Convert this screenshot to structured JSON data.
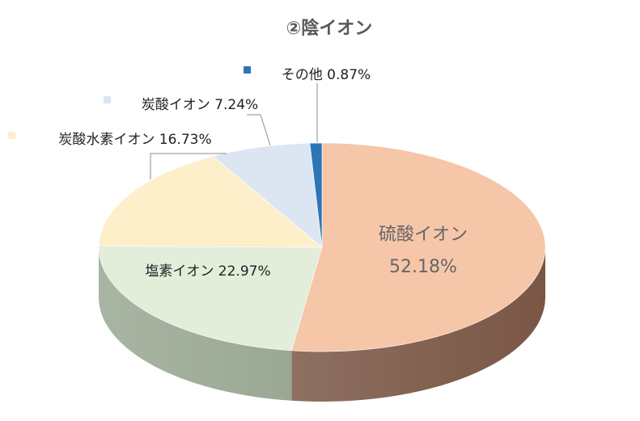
{
  "chart_data": {
    "type": "pie",
    "title": "②陰イオン",
    "slices": [
      {
        "name": "硫酸イオン",
        "value": 52.18,
        "label": "52.18%",
        "color": "#F6C6A8",
        "side": "#7A5645"
      },
      {
        "name": "塩素イオン",
        "value": 22.97,
        "label": "22.97%",
        "color": "#E2EDDA",
        "side": "#9AA893"
      },
      {
        "name": "炭酸水素イオン",
        "value": 16.73,
        "label": "16.73%",
        "color": "#FCEFCA",
        "side": "#B8AE8E"
      },
      {
        "name": "炭酸イオン",
        "value": 7.24,
        "label": "7.24%",
        "color": "#DCE6F2",
        "side": "#9AA3AE"
      },
      {
        "name": "その他",
        "value": 0.87,
        "label": "0.87%",
        "color": "#2E75B6",
        "side": "#1F4E79"
      }
    ]
  }
}
